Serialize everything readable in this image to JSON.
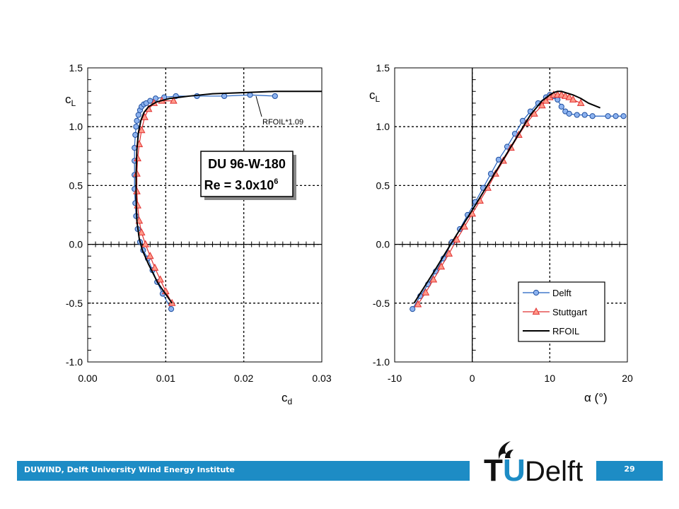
{
  "footer": {
    "institute": "DUWIND, Delft University Wind Energy Institute",
    "slide_number": "29"
  },
  "logo": {
    "name": "TU Delft logo",
    "text_t": "T",
    "text_u": "U",
    "text_delft": "Delft"
  },
  "colors": {
    "footer_blue": "#1d8cc5",
    "delft_marker": "#8db3f0",
    "stuttgart_marker": "#ff9a8a",
    "stuttgart_line": "#e03030"
  },
  "chart_data": [
    {
      "type": "line",
      "title": "",
      "xlabel": "cd",
      "ylabel": "cL",
      "xlim": [
        0,
        0.03
      ],
      "ylim": [
        -1.0,
        1.5
      ],
      "x_ticks": [
        "0.00",
        "0.01",
        "0.02",
        "0.03"
      ],
      "y_ticks": [
        "1.5",
        "1.0",
        "0.5",
        "0.0",
        "-0.5",
        "-1.0"
      ],
      "grid": true,
      "annotations": {
        "box_line1": "DU 96-W-180",
        "box_line2_prefix": "Re = 3.0x10",
        "box_line2_exp": "6",
        "rfoil_label": "RFOIL*1.09"
      },
      "series": [
        {
          "name": "Delft",
          "marker": "circle",
          "x": [
            0.0107,
            0.0096,
            0.0089,
            0.0083,
            0.0077,
            0.0071,
            0.0067,
            0.0064,
            0.0062,
            0.0061,
            0.006,
            0.006,
            0.006,
            0.006,
            0.0061,
            0.0062,
            0.0063,
            0.0065,
            0.0067,
            0.0069,
            0.0072,
            0.0075,
            0.008,
            0.0087,
            0.0098,
            0.0113,
            0.014,
            0.0175,
            0.0208,
            0.024
          ],
          "y": [
            -0.55,
            -0.42,
            -0.32,
            -0.22,
            -0.12,
            -0.05,
            0.02,
            0.13,
            0.24,
            0.35,
            0.47,
            0.59,
            0.71,
            0.82,
            0.93,
            1.0,
            1.05,
            1.1,
            1.14,
            1.17,
            1.19,
            1.2,
            1.22,
            1.24,
            1.25,
            1.26,
            1.26,
            1.26,
            1.27,
            1.26
          ]
        },
        {
          "name": "Stuttgart",
          "marker": "triangle",
          "x": [
            0.0108,
            0.01,
            0.0093,
            0.0086,
            0.008,
            0.0074,
            0.0069,
            0.0066,
            0.0064,
            0.0063,
            0.0063,
            0.0064,
            0.0066,
            0.0069,
            0.0073,
            0.0078,
            0.0085,
            0.0095,
            0.011
          ],
          "y": [
            -0.5,
            -0.4,
            -0.3,
            -0.2,
            -0.1,
            0.0,
            0.1,
            0.2,
            0.33,
            0.45,
            0.6,
            0.73,
            0.85,
            0.97,
            1.08,
            1.15,
            1.2,
            1.22,
            1.22
          ]
        },
        {
          "name": "RFOIL",
          "marker": "none",
          "x": [
            0.0108,
            0.009,
            0.0078,
            0.007,
            0.0066,
            0.0063,
            0.0062,
            0.0062,
            0.0063,
            0.0065,
            0.0068,
            0.0072,
            0.0078,
            0.0088,
            0.0105,
            0.013,
            0.016,
            0.02,
            0.024,
            0.03
          ],
          "y": [
            -0.5,
            -0.33,
            -0.17,
            -0.05,
            0.05,
            0.2,
            0.4,
            0.6,
            0.8,
            0.95,
            1.05,
            1.12,
            1.17,
            1.21,
            1.24,
            1.26,
            1.28,
            1.29,
            1.3,
            1.3
          ]
        }
      ]
    },
    {
      "type": "line",
      "title": "",
      "xlabel": "α (°)",
      "ylabel": "cL",
      "xlim": [
        -10,
        20
      ],
      "ylim": [
        -1.0,
        1.5
      ],
      "x_ticks": [
        "-10",
        "0",
        "10",
        "20"
      ],
      "y_ticks": [
        "1.5",
        "1.0",
        "0.5",
        "0.0",
        "-0.5",
        "-1.0"
      ],
      "grid": true,
      "legend_position": "bottom-right",
      "series": [
        {
          "name": "Delft",
          "marker": "circle",
          "x": [
            -7.7,
            -6.7,
            -5.7,
            -4.7,
            -3.7,
            -2.6,
            -1.6,
            -0.6,
            0.4,
            1.4,
            2.4,
            3.4,
            4.5,
            5.5,
            6.5,
            7.5,
            8.5,
            9.5,
            10.0,
            10.5,
            11.0,
            11.5,
            12.0,
            12.5,
            13.5,
            14.5,
            15.5,
            17.5,
            18.5,
            19.5
          ],
          "y": [
            -0.55,
            -0.44,
            -0.34,
            -0.23,
            -0.12,
            0.02,
            0.13,
            0.25,
            0.36,
            0.48,
            0.6,
            0.72,
            0.83,
            0.94,
            1.05,
            1.13,
            1.2,
            1.25,
            1.27,
            1.26,
            1.23,
            1.17,
            1.13,
            1.11,
            1.1,
            1.1,
            1.09,
            1.09,
            1.09,
            1.09
          ]
        },
        {
          "name": "Stuttgart",
          "marker": "triangle",
          "x": [
            -7.0,
            -6.0,
            -5.0,
            -4.0,
            -3.0,
            -2.0,
            -1.0,
            0.0,
            1.0,
            2.0,
            3.0,
            4.0,
            5.0,
            6.0,
            7.0,
            8.0,
            9.0,
            9.5,
            10.0,
            10.5,
            11.0,
            11.5,
            12.0,
            12.5,
            13.0,
            14.0
          ],
          "y": [
            -0.51,
            -0.41,
            -0.3,
            -0.19,
            -0.08,
            0.04,
            0.15,
            0.26,
            0.37,
            0.48,
            0.6,
            0.71,
            0.82,
            0.93,
            1.03,
            1.11,
            1.18,
            1.22,
            1.25,
            1.27,
            1.27,
            1.27,
            1.26,
            1.25,
            1.23,
            1.2
          ]
        },
        {
          "name": "RFOIL",
          "marker": "none",
          "x": [
            -7.5,
            -5,
            -2.5,
            0,
            2.5,
            5,
            7.5,
            9,
            10,
            10.5,
            11,
            11.5,
            12,
            13,
            14,
            15,
            16.5
          ],
          "y": [
            -0.5,
            -0.24,
            0.03,
            0.29,
            0.56,
            0.83,
            1.1,
            1.22,
            1.27,
            1.29,
            1.3,
            1.3,
            1.29,
            1.27,
            1.24,
            1.2,
            1.16
          ]
        }
      ]
    }
  ]
}
